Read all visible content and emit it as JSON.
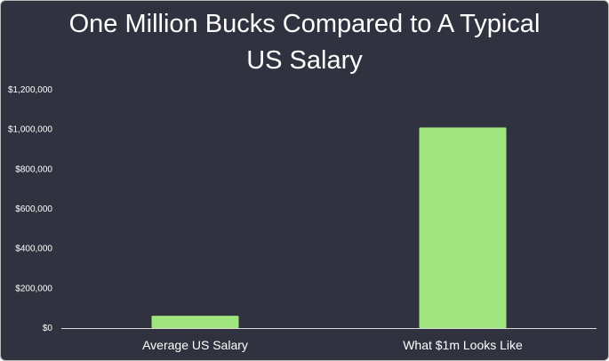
{
  "chart_data": {
    "type": "bar",
    "title": [
      "One Million Bucks Compared to A Typical",
      "US Salary"
    ],
    "categories": [
      "Average US Salary",
      "What $1m Looks Like"
    ],
    "values": [
      62000,
      1010000
    ],
    "ylim": [
      0,
      1200000
    ],
    "yticks": [
      0,
      200000,
      400000,
      600000,
      800000,
      1000000,
      1200000
    ],
    "ytick_labels": [
      "$0",
      "$200,000",
      "$400,000",
      "$600,000",
      "$800,000",
      "$1,000,000",
      "$1,200,000"
    ],
    "xlabel": "",
    "ylabel": "",
    "grid": false,
    "legend": "none",
    "colors": {
      "background": "#31323f",
      "bar": "#a0e57e",
      "text": "#ffffff",
      "axis": "#d9d9d9"
    }
  }
}
